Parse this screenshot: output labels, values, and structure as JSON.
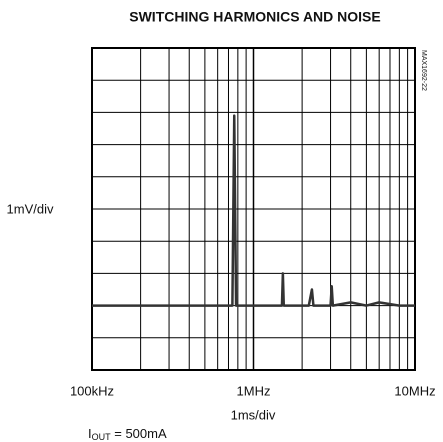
{
  "chart_data": {
    "type": "line",
    "title": "SWITCHING HARMONICS AND NOISE",
    "ylabel": "1mV/div",
    "xlabel": "1ms/div",
    "side_label": "MAX1692-22",
    "annotation": {
      "main": "I",
      "subscript": "OUT",
      "rest": " = 500mA"
    },
    "log_x": true,
    "xlim": [
      100000,
      10000000
    ],
    "xticks": [
      {
        "value": 100000,
        "label": "100kHz"
      },
      {
        "value": 1000000,
        "label": "1MHz"
      },
      {
        "value": 10000000,
        "label": "10MHz"
      }
    ],
    "x_minor_ticks": [
      200000,
      300000,
      400000,
      500000,
      600000,
      700000,
      800000,
      900000,
      2000000,
      3000000,
      4000000,
      5000000,
      6000000,
      7000000,
      8000000,
      9000000
    ],
    "ylim": [
      0,
      10
    ],
    "y_grid": [
      1,
      2,
      3,
      4,
      5,
      6,
      7,
      8,
      9
    ],
    "grid": true,
    "series": [
      {
        "color": "#333333",
        "x": [
          100000,
          200000,
          300000,
          500000,
          700000,
          740000,
          760000,
          780000,
          900000,
          1500000,
          1520000,
          1540000,
          2200000,
          2300000,
          2350000,
          3000000,
          3050000,
          3100000,
          4000000,
          5000000,
          6000000,
          8000000,
          10000000
        ],
        "values": [
          2.0,
          2.0,
          2.0,
          2.0,
          2.0,
          2.0,
          7.9,
          2.0,
          2.0,
          2.0,
          3.0,
          2.0,
          2.0,
          2.5,
          2.0,
          2.0,
          2.6,
          2.0,
          2.1,
          2.0,
          2.1,
          2.0,
          2.0
        ]
      }
    ]
  }
}
